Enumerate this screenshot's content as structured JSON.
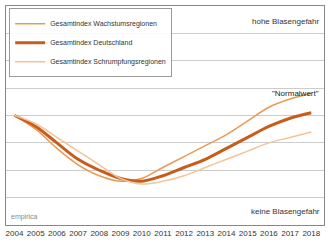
{
  "chart_data": {
    "type": "line",
    "x": [
      2004,
      2005,
      2006,
      2007,
      2008,
      2009,
      2010,
      2011,
      2012,
      2013,
      2014,
      2015,
      2016,
      2017,
      2018
    ],
    "series": [
      {
        "name": "Gesamtindex Wachstumsregionen",
        "color": "#e89a55",
        "values": [
          4.0,
          3.5,
          2.8,
          2.2,
          1.8,
          1.6,
          1.7,
          2.1,
          2.5,
          2.9,
          3.3,
          3.8,
          4.3,
          4.6,
          4.8
        ]
      },
      {
        "name": "Gesamtindex Deutschland",
        "color": "#c65d1a",
        "values": [
          4.0,
          3.6,
          3.0,
          2.4,
          2.0,
          1.7,
          1.6,
          1.8,
          2.1,
          2.4,
          2.8,
          3.2,
          3.6,
          3.9,
          4.1
        ]
      },
      {
        "name": "Gesamtindex Schrumpfungsregionen",
        "color": "#f2c49a",
        "values": [
          4.0,
          3.7,
          3.2,
          2.7,
          2.2,
          1.7,
          1.5,
          1.6,
          1.8,
          2.1,
          2.4,
          2.7,
          3.0,
          3.2,
          3.4
        ]
      }
    ],
    "xlim": [
      2003.6,
      2018.6
    ],
    "xticks": [
      2004,
      2005,
      2006,
      2007,
      2008,
      2009,
      2010,
      2011,
      2012,
      2013,
      2014,
      2015,
      2016,
      2017,
      2018
    ],
    "ylim": [
      0,
      8
    ],
    "yticks": [
      0,
      1,
      2,
      3,
      4,
      5,
      6,
      7,
      8
    ],
    "grid": true,
    "legend": "top left",
    "tick_labels": "x",
    "annotations": [
      "hohe Blasengefahr",
      "keine Blasengefahr",
      "\"Normalwert\"",
      "empirica"
    ]
  }
}
